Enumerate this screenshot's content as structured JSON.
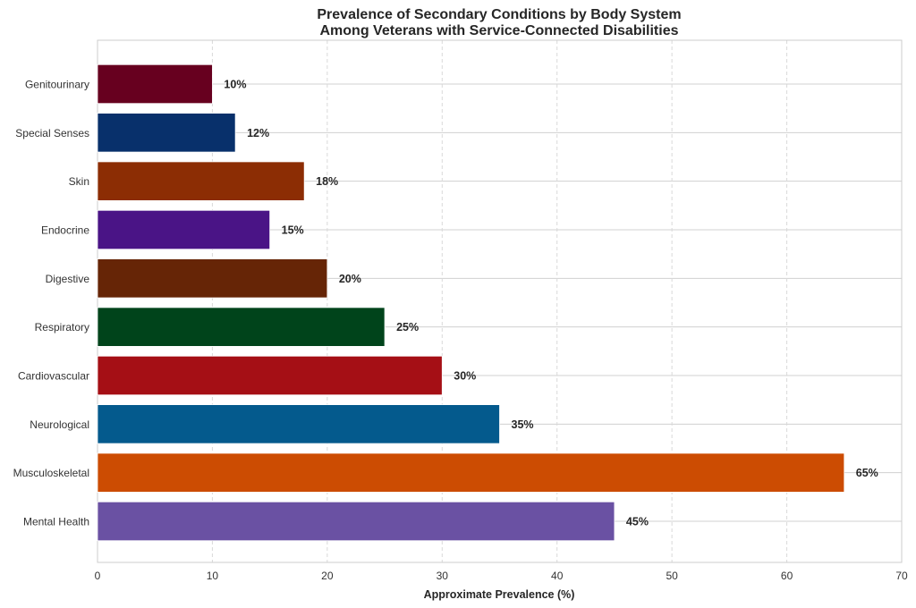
{
  "chart_data": {
    "type": "bar",
    "orientation": "horizontal",
    "title": [
      "Prevalence of Secondary Conditions by Body System",
      "Among Veterans with Service-Connected Disabilities"
    ],
    "xlabel": "Approximate Prevalence (%)",
    "ylabel": "",
    "xlim": [
      0,
      70
    ],
    "xticks": [
      0,
      10,
      20,
      30,
      40,
      50,
      60,
      70
    ],
    "grid": {
      "x": "dashed",
      "y": "solid"
    },
    "categories": [
      "Mental Health",
      "Musculoskeletal",
      "Neurological",
      "Cardiovascular",
      "Respiratory",
      "Digestive",
      "Endocrine",
      "Skin",
      "Special Senses",
      "Genitourinary"
    ],
    "values": [
      45,
      65,
      35,
      30,
      25,
      20,
      15,
      18,
      12,
      10
    ],
    "value_labels": [
      "45%",
      "65%",
      "35%",
      "30%",
      "25%",
      "20%",
      "15%",
      "18%",
      "12%",
      "10%"
    ],
    "colors": [
      "#6a51a3",
      "#cc4c02",
      "#045a8d",
      "#a50f15",
      "#00441b",
      "#662506",
      "#4a1486",
      "#8c2d04",
      "#08306b",
      "#67001f"
    ]
  }
}
